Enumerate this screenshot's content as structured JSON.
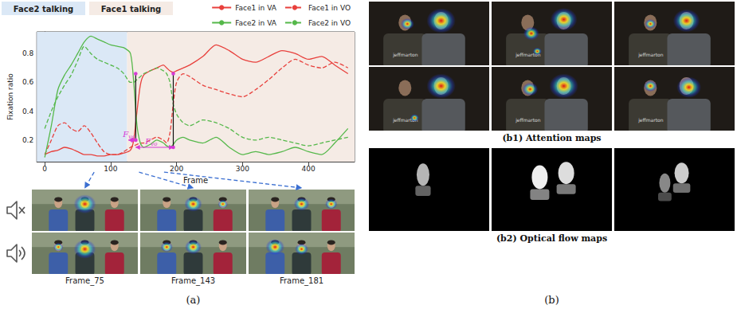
{
  "chart_data": {
    "type": "line",
    "xlabel": "Frame",
    "ylabel": "Fixation ratio",
    "x": [
      0,
      10,
      20,
      30,
      40,
      50,
      60,
      70,
      80,
      90,
      100,
      110,
      120,
      130,
      135,
      140,
      145,
      150,
      160,
      170,
      180,
      185,
      190,
      195,
      200,
      210,
      220,
      240,
      260,
      280,
      300,
      320,
      340,
      360,
      380,
      400,
      420,
      440,
      460
    ],
    "xlim": [
      -12,
      470
    ],
    "xticks": [
      0,
      100,
      200,
      300,
      400
    ],
    "ylim": [
      0.05,
      0.95
    ],
    "yticks": [
      0.2,
      0.4,
      0.6,
      0.8
    ],
    "grid": false,
    "legend": "upper-right",
    "series": [
      {
        "name": "Face1 in VA",
        "color": "#e8403c",
        "line_style": "solid",
        "values": [
          0.1,
          0.12,
          0.13,
          0.15,
          0.14,
          0.12,
          0.1,
          0.1,
          0.09,
          0.09,
          0.1,
          0.1,
          0.11,
          0.13,
          0.2,
          0.4,
          0.58,
          0.65,
          0.68,
          0.7,
          0.72,
          0.7,
          0.68,
          0.67,
          0.68,
          0.7,
          0.72,
          0.78,
          0.86,
          0.82,
          0.76,
          0.74,
          0.78,
          0.82,
          0.8,
          0.76,
          0.78,
          0.72,
          0.66
        ]
      },
      {
        "name": "Face1 in VO",
        "color": "#e8403c",
        "line_style": "dashed",
        "values": [
          0.1,
          0.2,
          0.3,
          0.32,
          0.28,
          0.26,
          0.3,
          0.25,
          0.18,
          0.12,
          0.1,
          0.1,
          0.12,
          0.15,
          0.16,
          0.17,
          0.18,
          0.18,
          0.2,
          0.22,
          0.2,
          0.18,
          0.25,
          0.45,
          0.6,
          0.66,
          0.64,
          0.58,
          0.55,
          0.52,
          0.5,
          0.55,
          0.62,
          0.7,
          0.76,
          0.72,
          0.7,
          0.74,
          0.7
        ]
      },
      {
        "name": "Face2 in VA",
        "color": "#55b84a",
        "line_style": "solid",
        "values": [
          0.08,
          0.3,
          0.55,
          0.65,
          0.72,
          0.8,
          0.88,
          0.92,
          0.9,
          0.88,
          0.86,
          0.85,
          0.84,
          0.8,
          0.6,
          0.3,
          0.18,
          0.15,
          0.17,
          0.2,
          0.18,
          0.16,
          0.15,
          0.17,
          0.2,
          0.22,
          0.2,
          0.18,
          0.22,
          0.15,
          0.1,
          0.12,
          0.1,
          0.12,
          0.15,
          0.12,
          0.1,
          0.18,
          0.28
        ]
      },
      {
        "name": "Face2 in VO",
        "color": "#55b84a",
        "line_style": "dashed",
        "values": [
          0.28,
          0.4,
          0.5,
          0.58,
          0.65,
          0.75,
          0.85,
          0.8,
          0.76,
          0.74,
          0.72,
          0.7,
          0.66,
          0.6,
          0.6,
          0.62,
          0.64,
          0.66,
          0.68,
          0.7,
          0.68,
          0.66,
          0.6,
          0.45,
          0.38,
          0.32,
          0.3,
          0.34,
          0.32,
          0.28,
          0.22,
          0.2,
          0.22,
          0.2,
          0.18,
          0.16,
          0.18,
          0.2,
          0.22
        ]
      }
    ],
    "regions": [
      {
        "label": "Face2 talking",
        "from": -12,
        "to": 125,
        "color": "#dbe8f6"
      },
      {
        "label": "Face1 talking",
        "from": 125,
        "to": 470,
        "color": "#f5ebe5"
      }
    ],
    "annotations": [
      {
        "text": "F",
        "subscript": "va",
        "from": 127,
        "to": 138,
        "y": 0.2,
        "color": "#d63ad6"
      },
      {
        "text": "F",
        "subscript": "vo",
        "from": 138,
        "to": 195,
        "y": 0.15,
        "color": "#d63ad6"
      }
    ],
    "markers": [
      {
        "x": 138,
        "from": 0.2,
        "to": 0.66
      },
      {
        "x": 195,
        "from": 0.15,
        "to": 0.66
      }
    ]
  },
  "panel_a": {
    "label": "(a)",
    "frames": [
      {
        "label": "Frame_75",
        "frame": 75
      },
      {
        "label": "Frame_143",
        "frame": 143
      },
      {
        "label": "Frame_181",
        "frame": 181
      }
    ]
  },
  "panel_b": {
    "label": "(b)",
    "sections": [
      "(b1) Attention maps",
      "(b2) Optical flow maps"
    ],
    "overlay_text": "jeffmarton"
  }
}
